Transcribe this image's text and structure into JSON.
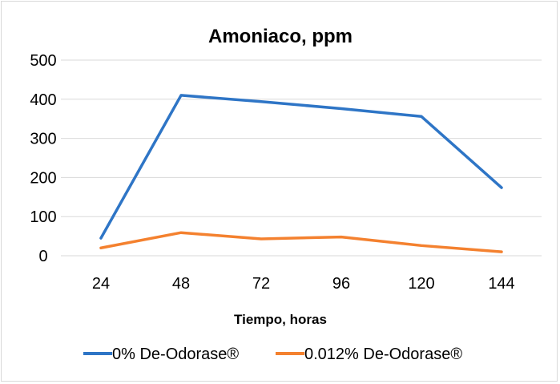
{
  "chart_data": {
    "type": "line",
    "title": "Amoniaco, ppm",
    "xlabel": "Tiempo, horas",
    "ylabel": "",
    "categories": [
      "24",
      "48",
      "72",
      "96",
      "120",
      "144"
    ],
    "ylim": [
      0,
      500
    ],
    "yticks": [
      "0",
      "100",
      "200",
      "300",
      "400",
      "500"
    ],
    "grid": true,
    "legend_position": "bottom",
    "series": [
      {
        "name": "0% De-Odorase®",
        "values": [
          45,
          410,
          394,
          376,
          356,
          174
        ],
        "color": "#2e75c6"
      },
      {
        "name": "0.012% De-Odorase®",
        "values": [
          20,
          59,
          43,
          48,
          26,
          10
        ],
        "color": "#f4812f"
      }
    ]
  }
}
